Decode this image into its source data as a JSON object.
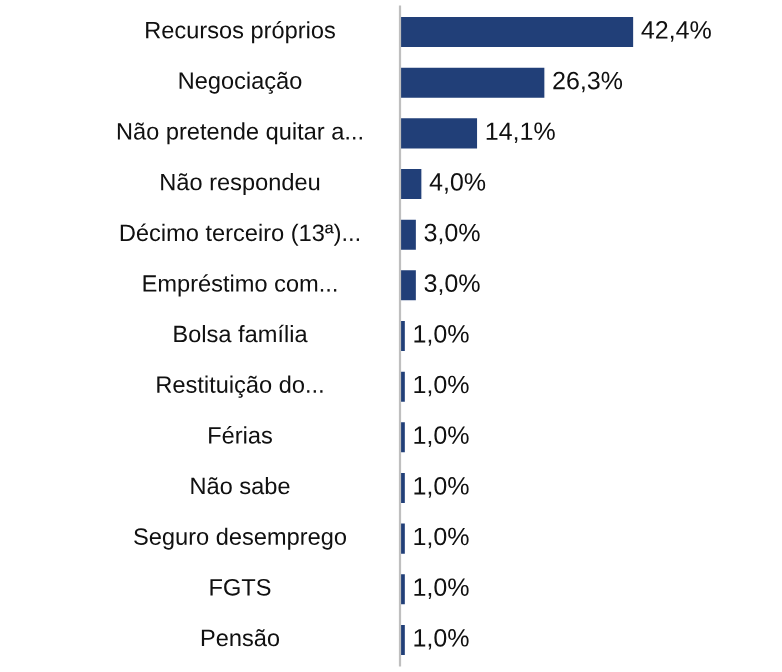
{
  "chart_data": {
    "type": "bar",
    "orientation": "horizontal",
    "categories": [
      "Recursos próprios",
      "Negociação",
      "Não pretende quitar a...",
      "Não respondeu",
      "Décimo terceiro (13ª)...",
      "Empréstimo com...",
      "Bolsa família",
      "Restituição do...",
      "Férias",
      "Não sabe",
      "Seguro desemprego",
      "FGTS",
      "Pensão"
    ],
    "values": [
      42.4,
      26.3,
      14.1,
      4.0,
      3.0,
      3.0,
      1.0,
      1.0,
      1.0,
      1.0,
      1.0,
      1.0,
      1.0
    ],
    "value_labels": [
      "42,4%",
      "26,3%",
      "14,1%",
      "4,0%",
      "3,0%",
      "3,0%",
      "1,0%",
      "1,0%",
      "1,0%",
      "1,0%",
      "1,0%",
      "1,0%",
      "1,0%"
    ],
    "color": "#213f78"
  }
}
